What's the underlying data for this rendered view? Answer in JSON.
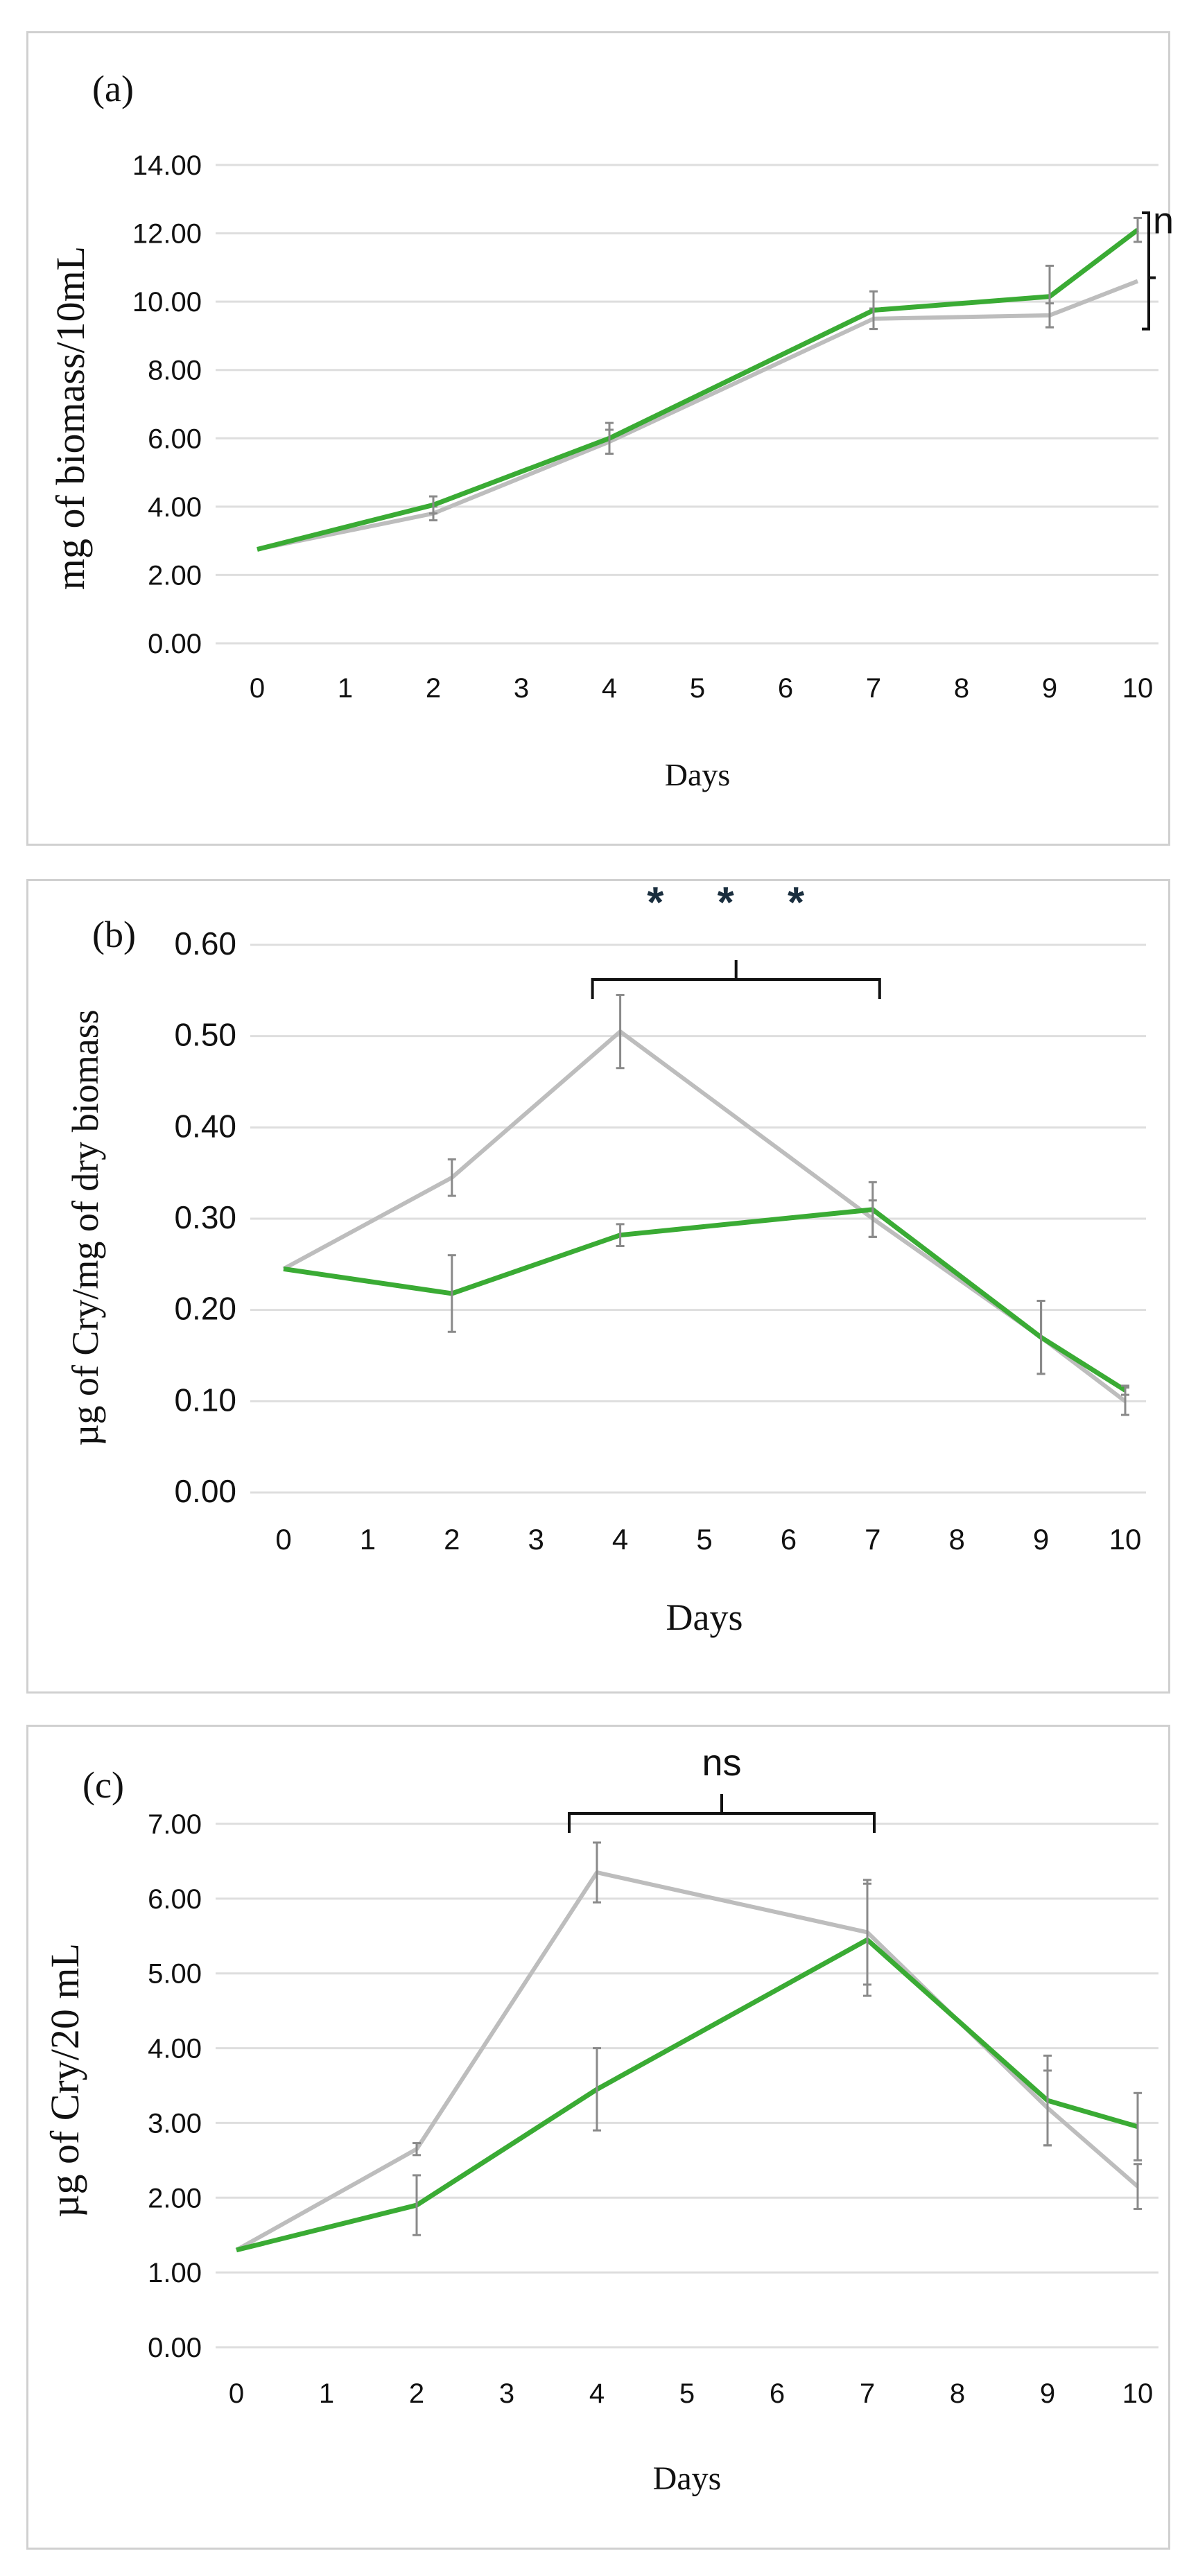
{
  "colors": {
    "green_series": "#3aab34",
    "gray_series": "#bdbdbd",
    "grid": "#dedede",
    "error_bar": "#8a8a8a",
    "bracket": "#111111"
  },
  "chart_data": [
    {
      "type": "line",
      "panel_label": "(a)",
      "title": "",
      "xlabel": "Days",
      "ylabel": "mg of biomass/10mL",
      "categories": [
        "0",
        "1",
        "2",
        "3",
        "4",
        "5",
        "6",
        "7",
        "8",
        "9",
        "10"
      ],
      "y_tick_labels": [
        "0.00",
        "2.00",
        "4.00",
        "6.00",
        "8.00",
        "10.00",
        "12.00",
        "14.00"
      ],
      "ylim": [
        0,
        14
      ],
      "grid": true,
      "series": [
        {
          "name": "gray",
          "color": "#bdbdbd",
          "x": [
            0,
            2,
            4,
            7,
            9,
            10
          ],
          "y": [
            2.75,
            3.8,
            5.9,
            9.5,
            9.6,
            10.6
          ],
          "err": [
            0,
            0.2,
            0.35,
            0.3,
            0.35,
            0
          ]
        },
        {
          "name": "green",
          "color": "#3aab34",
          "x": [
            0,
            2,
            4,
            7,
            9,
            10
          ],
          "y": [
            2.75,
            4.05,
            6.0,
            9.75,
            10.15,
            12.1
          ],
          "err": [
            0,
            0.25,
            0.45,
            0.55,
            0.9,
            0.35
          ]
        }
      ],
      "annotations": [
        {
          "text": "ns",
          "type": "vertical-bracket",
          "between_days": [
            10,
            10
          ]
        }
      ]
    },
    {
      "type": "line",
      "panel_label": "(b)",
      "title": "",
      "xlabel": "Days",
      "ylabel": "µg of Cry/mg of dry biomass",
      "categories": [
        "0",
        "1",
        "2",
        "3",
        "4",
        "5",
        "6",
        "7",
        "8",
        "9",
        "10"
      ],
      "y_tick_labels": [
        "0.00",
        "0.10",
        "0.20",
        "0.30",
        "0.40",
        "0.50",
        "0.60"
      ],
      "ylim": [
        0,
        0.6
      ],
      "grid": true,
      "series": [
        {
          "name": "gray",
          "color": "#bdbdbd",
          "x": [
            0,
            2,
            4,
            7,
            9,
            10
          ],
          "y": [
            0.245,
            0.345,
            0.505,
            0.3,
            0.17,
            0.1
          ],
          "err": [
            0,
            0.02,
            0.04,
            0.02,
            0.04,
            0.015
          ]
        },
        {
          "name": "green",
          "color": "#3aab34",
          "x": [
            0,
            2,
            4,
            7,
            9,
            10
          ],
          "y": [
            0.245,
            0.218,
            0.282,
            0.31,
            0.17,
            0.112
          ],
          "err": [
            0,
            0.042,
            0.012,
            0.03,
            0.04,
            0.005
          ]
        }
      ],
      "annotations": [
        {
          "text": "* * *",
          "type": "horizontal-bracket",
          "between_days": [
            4,
            7
          ]
        }
      ]
    },
    {
      "type": "line",
      "panel_label": "(c)",
      "title": "",
      "xlabel": "Days",
      "ylabel": "µg of Cry/20 mL",
      "categories": [
        "0",
        "1",
        "2",
        "3",
        "4",
        "5",
        "6",
        "7",
        "8",
        "9",
        "10"
      ],
      "y_tick_labels": [
        "0.00",
        "1.00",
        "2.00",
        "3.00",
        "4.00",
        "5.00",
        "6.00",
        "7.00"
      ],
      "ylim": [
        0,
        7
      ],
      "grid": true,
      "series": [
        {
          "name": "gray",
          "color": "#bdbdbd",
          "x": [
            0,
            2,
            4,
            7,
            9,
            10
          ],
          "y": [
            1.3,
            2.65,
            6.35,
            5.55,
            3.2,
            2.15
          ],
          "err": [
            0,
            0.08,
            0.4,
            0.7,
            0.5,
            0.3
          ]
        },
        {
          "name": "green",
          "color": "#3aab34",
          "x": [
            0,
            2,
            4,
            7,
            9,
            10
          ],
          "y": [
            1.3,
            1.9,
            3.45,
            5.45,
            3.3,
            2.95
          ],
          "err": [
            0,
            0.4,
            0.55,
            0.75,
            0.6,
            0.45
          ]
        }
      ],
      "annotations": [
        {
          "text": "ns",
          "type": "horizontal-bracket",
          "between_days": [
            4,
            7
          ]
        }
      ]
    }
  ]
}
